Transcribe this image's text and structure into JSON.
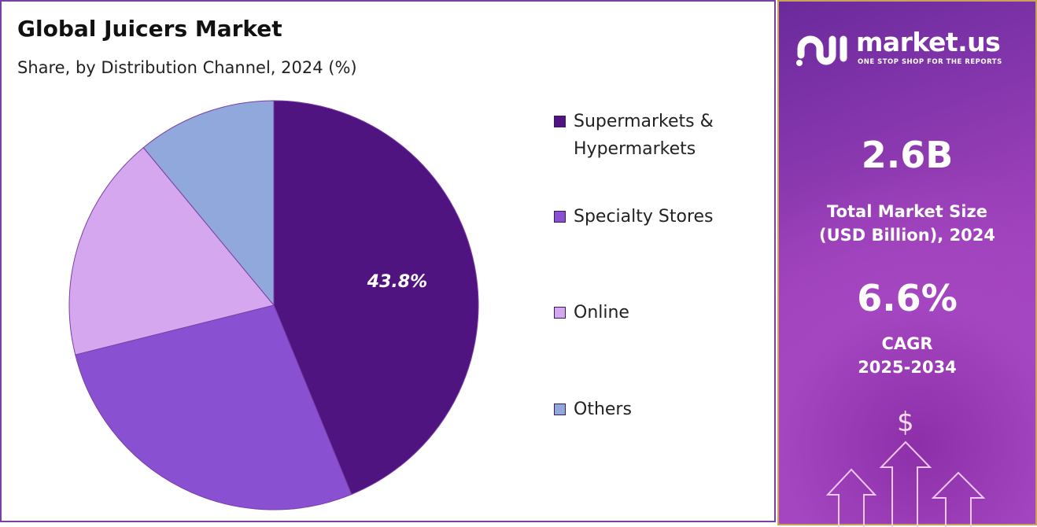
{
  "chart_data": {
    "type": "pie",
    "title": "Global Juicers Market",
    "subtitle": "Share, by Distribution Channel, 2024 (%)",
    "legend_position": "right",
    "slices": [
      {
        "label": "Supermarkets & Hypermarkets",
        "value": 43.8,
        "color": "#4f1480",
        "data_label": "43.8%"
      },
      {
        "label": "Specialty Stores",
        "value": 27.3,
        "color": "#8a50d2",
        "data_label": ""
      },
      {
        "label": "Online",
        "value": 17.9,
        "color": "#d4a7ef",
        "data_label": ""
      },
      {
        "label": "Others",
        "value": 11.0,
        "color": "#90a8dc",
        "data_label": ""
      }
    ]
  },
  "legend": {
    "l0a": "Supermarkets &",
    "l0b": "Hypermarkets",
    "l1": "Specialty Stores",
    "l2": "Online",
    "l3": "Others"
  },
  "sidebar": {
    "logo_name": "market.us",
    "logo_tagline": "ONE STOP SHOP FOR THE REPORTS",
    "market_size": "2.6B",
    "market_size_label_1": "Total Market Size",
    "market_size_label_2": "(USD Billion), 2024",
    "cagr": "6.6%",
    "cagr_label_1": "CAGR",
    "cagr_label_2": "2025-2034",
    "dollar_icon": "$"
  }
}
